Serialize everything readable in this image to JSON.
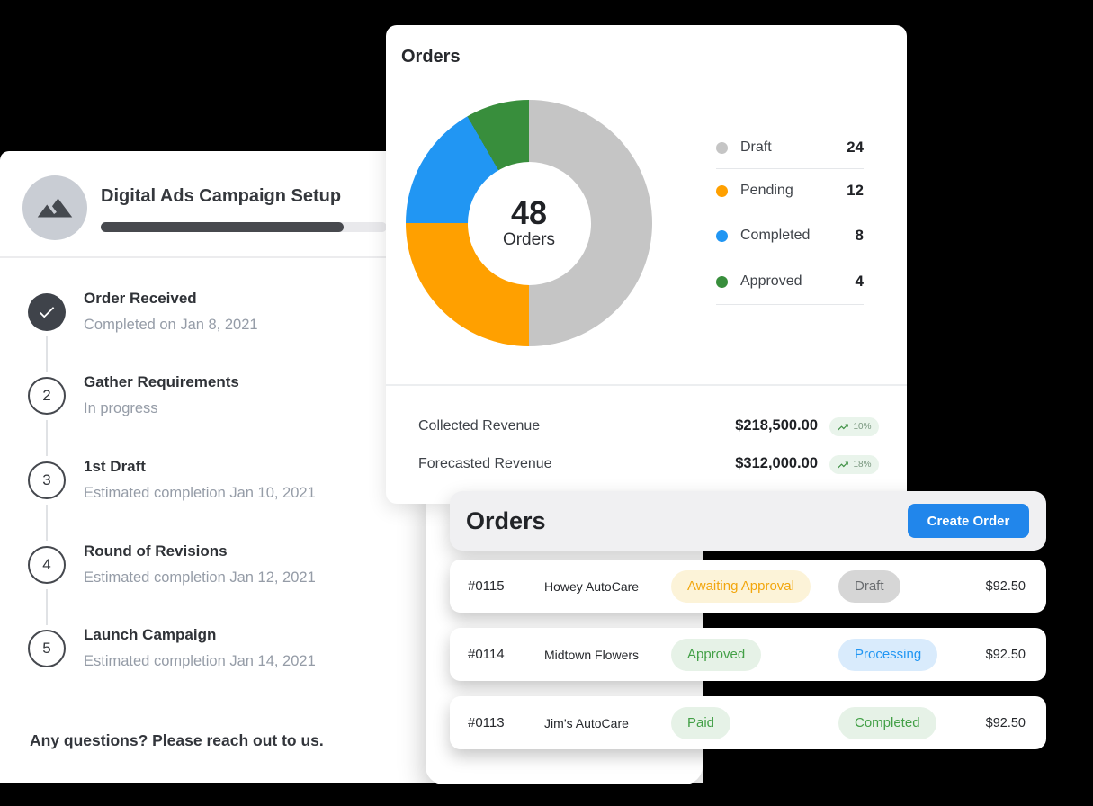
{
  "campaign_panel": {
    "title": "Digital Ads Campaign Setup",
    "progress_percent": 85,
    "steps": [
      {
        "num": "1",
        "state": "completed",
        "title": "Order Received",
        "subtitle": "Completed on Jan 8, 2021"
      },
      {
        "num": "2",
        "state": "current",
        "title": "Gather Requirements",
        "subtitle": "In progress"
      },
      {
        "num": "3",
        "state": "upcoming",
        "title": "1st Draft",
        "subtitle": "Estimated completion Jan 10, 2021"
      },
      {
        "num": "4",
        "state": "upcoming",
        "title": "Round of Revisions",
        "subtitle": "Estimated completion Jan 12, 2021"
      },
      {
        "num": "5",
        "state": "upcoming",
        "title": "Launch Campaign",
        "subtitle": "Estimated completion Jan 14, 2021"
      }
    ],
    "footer_note": "Any questions? Please reach out to us."
  },
  "orders_summary": {
    "title": "Orders",
    "revenue": [
      {
        "label": "Collected Revenue",
        "value": "$218,500.00",
        "change": "10%"
      },
      {
        "label": "Forecasted Revenue",
        "value": "$312,000.00",
        "change": "18%"
      }
    ]
  },
  "chart_data": {
    "type": "pie",
    "subtype": "donut",
    "title": "Orders",
    "total": 48,
    "center_value": "48",
    "center_label": "Orders",
    "segments": [
      {
        "label": "Draft",
        "value": 24,
        "color": "#c5c5c5"
      },
      {
        "label": "Pending",
        "value": 12,
        "color": "#ffa000"
      },
      {
        "label": "Completed",
        "value": 8,
        "color": "#2196f3"
      },
      {
        "label": "Approved",
        "value": 4,
        "color": "#388e3c"
      }
    ],
    "start_angle_deg": 0,
    "direction": "clockwise",
    "legend_position": "right"
  },
  "orders_list": {
    "title": "Orders",
    "create_button_label": "Create Order",
    "rows": [
      {
        "id": "#0115",
        "customer": "Howey AutoCare",
        "badge1": "Awaiting Approval",
        "badge1_style": "yellow",
        "badge2": "Draft",
        "badge2_style": "gray",
        "amount": "$92.50"
      },
      {
        "id": "#0114",
        "customer": "Midtown Flowers",
        "badge1": "Approved",
        "badge1_style": "green",
        "badge2": "Processing",
        "badge2_style": "blue",
        "amount": "$92.50"
      },
      {
        "id": "#0113",
        "customer": "Jim’s AutoCare",
        "badge1": "Paid",
        "badge1_style": "green",
        "badge2": "Completed",
        "badge2_style": "green",
        "amount": "$92.50"
      }
    ]
  },
  "colors": {
    "page_background": "#000000",
    "accent_blue": "#2186eb",
    "progress_bar": "#47494e",
    "badge_styles": {
      "yellow": {
        "bg": "#fcf3d8",
        "text": "#f2a60d"
      },
      "gray": {
        "bg": "#d6d6d6",
        "text": "#696c6f"
      },
      "green": {
        "bg": "#e6f2e7",
        "text": "#43a047"
      },
      "blue": {
        "bg": "#d9ebfc",
        "text": "#2196f3"
      }
    },
    "trend_badge": {
      "bg": "#e9f4eb",
      "icon": "#3f9145",
      "text": "#79977f"
    }
  }
}
